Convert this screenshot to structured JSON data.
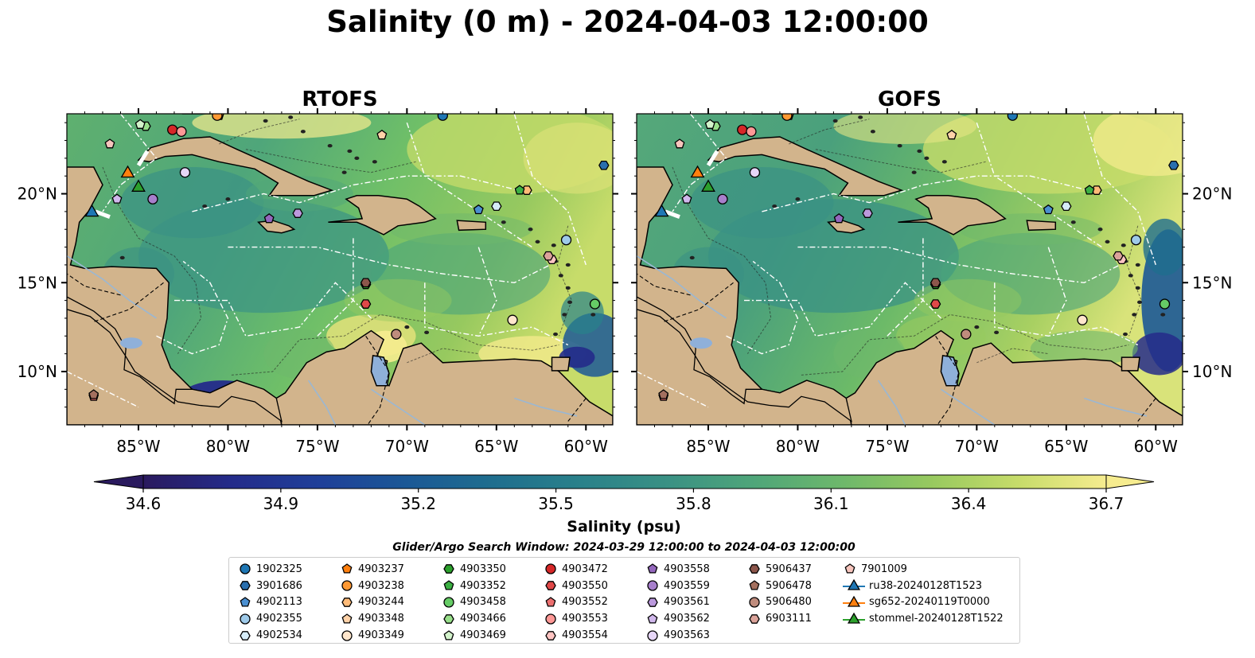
{
  "title": "Salinity (0 m) - 2024-04-03 12:00:00",
  "panels": [
    {
      "title": "RTOFS",
      "variant": "rtofs"
    },
    {
      "title": "GOFS",
      "variant": "gofs"
    }
  ],
  "axes": {
    "x_ticks": [
      "85°W",
      "80°W",
      "75°W",
      "70°W",
      "65°W",
      "60°W"
    ],
    "x_tick_lon": [
      -85,
      -80,
      -75,
      -70,
      -65,
      -60
    ],
    "y_ticks": [
      "20°N",
      "15°N",
      "10°N"
    ],
    "y_tick_lat": [
      20,
      15,
      10
    ],
    "lon_range": [
      -89,
      -58.5
    ],
    "lat_range": [
      7,
      24.5
    ]
  },
  "colorbar": {
    "label": "Salinity (psu)",
    "ticks": [
      "34.6",
      "34.9",
      "35.2",
      "35.5",
      "35.8",
      "36.1",
      "36.4",
      "36.7"
    ],
    "range": [
      34.6,
      36.7
    ],
    "extend": "both",
    "colormap_stops": [
      "#2a1a5e",
      "#242b8a",
      "#1f3f99",
      "#1b5896",
      "#1f6e8e",
      "#2a818a",
      "#3a9184",
      "#4fa679",
      "#6eb86b",
      "#97c95f",
      "#c7dc6a",
      "#f6ec8f"
    ]
  },
  "land_color": "#d2b48c",
  "lake_color": "#8fb0d9",
  "search_window": "Glider/Argo Search Window: 2024-03-29 12:00:00 to 2024-04-03 12:00:00",
  "legend_columns": [
    [
      {
        "label": "1902325",
        "marker": "circle",
        "color": "#1f77b4"
      },
      {
        "label": "3901686",
        "marker": "hexagon",
        "color": "#2a6fae"
      },
      {
        "label": "4902113",
        "marker": "pentagon",
        "color": "#4a8fd0"
      },
      {
        "label": "4902355",
        "marker": "circle",
        "color": "#9ecae9"
      },
      {
        "label": "4902534",
        "marker": "hexagon",
        "color": "#d6ecf8"
      }
    ],
    [
      {
        "label": "4903237",
        "marker": "pentagon",
        "color": "#ff7f0e"
      },
      {
        "label": "4903238",
        "marker": "circle",
        "color": "#ff9933"
      },
      {
        "label": "4903244",
        "marker": "hexagon",
        "color": "#ffbb78"
      },
      {
        "label": "4903348",
        "marker": "pentagon",
        "color": "#ffd2a8"
      },
      {
        "label": "4903349",
        "marker": "circle",
        "color": "#ffe6cc"
      }
    ],
    [
      {
        "label": "4903350",
        "marker": "hexagon",
        "color": "#2ca02c"
      },
      {
        "label": "4903352",
        "marker": "pentagon",
        "color": "#3cb043"
      },
      {
        "label": "4903458",
        "marker": "circle",
        "color": "#66cc66"
      },
      {
        "label": "4903466",
        "marker": "hexagon",
        "color": "#98df8a"
      },
      {
        "label": "4903469",
        "marker": "pentagon",
        "color": "#d4f4cc"
      }
    ],
    [
      {
        "label": "4903472",
        "marker": "circle",
        "color": "#d62728"
      },
      {
        "label": "4903550",
        "marker": "hexagon",
        "color": "#e04848"
      },
      {
        "label": "4903552",
        "marker": "pentagon",
        "color": "#ec6f6f"
      },
      {
        "label": "4903553",
        "marker": "circle",
        "color": "#ff9896"
      },
      {
        "label": "4903554",
        "marker": "hexagon",
        "color": "#ffc4c2"
      }
    ],
    [
      {
        "label": "4903558",
        "marker": "pentagon",
        "color": "#9467bd"
      },
      {
        "label": "4903559",
        "marker": "circle",
        "color": "#a77fcc"
      },
      {
        "label": "4903561",
        "marker": "hexagon",
        "color": "#bb99dd"
      },
      {
        "label": "4903562",
        "marker": "pentagon",
        "color": "#d1b8ec"
      },
      {
        "label": "4903563",
        "marker": "circle",
        "color": "#e6d6f7"
      }
    ],
    [
      {
        "label": "5906437",
        "marker": "hexagon",
        "color": "#8c564b"
      },
      {
        "label": "5906478",
        "marker": "pentagon",
        "color": "#a4705f"
      },
      {
        "label": "5906480",
        "marker": "circle",
        "color": "#bf8c7d"
      },
      {
        "label": "6903111",
        "marker": "hexagon",
        "color": "#dba39a"
      }
    ],
    [
      {
        "label": "7901009",
        "marker": "pentagon",
        "color": "#f7c5bd"
      },
      {
        "label": "ru38-20240128T1523",
        "marker": "triangle-line",
        "color": "#1f77b4"
      },
      {
        "label": "sg652-20240119T0000",
        "marker": "triangle-line",
        "color": "#ff7f0e"
      },
      {
        "label": "stommel-20240128T1522",
        "marker": "triangle-line",
        "color": "#2ca02c"
      }
    ]
  ],
  "floats": [
    {
      "id": "1902325",
      "lon": -68.0,
      "lat": 24.4
    },
    {
      "id": "3901686",
      "lon": -59.0,
      "lat": 21.6
    },
    {
      "id": "4902113",
      "lon": -66.0,
      "lat": 19.1
    },
    {
      "id": "4902355",
      "lon": -61.1,
      "lat": 17.4
    },
    {
      "id": "4902534",
      "lon": -65.0,
      "lat": 19.3
    },
    {
      "id": "4903237",
      "lon": -80.5,
      "lat": 24.4
    },
    {
      "id": "4903238",
      "lon": -80.6,
      "lat": 24.4
    },
    {
      "id": "4903244",
      "lon": -63.3,
      "lat": 20.2
    },
    {
      "id": "4903348",
      "lon": -71.4,
      "lat": 23.3
    },
    {
      "id": "4903349",
      "lon": -64.1,
      "lat": 12.9
    },
    {
      "id": "4903350",
      "lon": -72.3,
      "lat": 14.9
    },
    {
      "id": "4903352",
      "lon": -63.7,
      "lat": 20.2
    },
    {
      "id": "4903458",
      "lon": -59.5,
      "lat": 13.8
    },
    {
      "id": "4903466",
      "lon": -84.6,
      "lat": 23.8
    },
    {
      "id": "4903469",
      "lon": -84.9,
      "lat": 23.9
    },
    {
      "id": "4903472",
      "lon": -83.1,
      "lat": 23.6
    },
    {
      "id": "4903550",
      "lon": -72.3,
      "lat": 13.8
    },
    {
      "id": "4903552",
      "lon": -87.5,
      "lat": 8.6
    },
    {
      "id": "4903553",
      "lon": -82.6,
      "lat": 23.5
    },
    {
      "id": "4903554",
      "lon": -61.9,
      "lat": 16.3
    },
    {
      "id": "4903558",
      "lon": -77.7,
      "lat": 18.6
    },
    {
      "id": "4903559",
      "lon": -84.2,
      "lat": 19.7
    },
    {
      "id": "4903561",
      "lon": -76.1,
      "lat": 18.9
    },
    {
      "id": "4903562",
      "lon": -86.2,
      "lat": 19.7
    },
    {
      "id": "4903563",
      "lon": -82.4,
      "lat": 21.2
    },
    {
      "id": "5906437",
      "lon": -72.3,
      "lat": 15.0
    },
    {
      "id": "5906478",
      "lon": -87.5,
      "lat": 8.7
    },
    {
      "id": "5906480",
      "lon": -70.6,
      "lat": 12.1
    },
    {
      "id": "6903111",
      "lon": -62.1,
      "lat": 16.5
    },
    {
      "id": "7901009",
      "lon": -86.6,
      "lat": 22.8
    }
  ],
  "gliders": [
    {
      "id": "ru38-20240128T1523",
      "lon": -87.6,
      "lat": 18.9
    },
    {
      "id": "sg652-20240119T0000",
      "lon": -85.6,
      "lat": 21.1
    },
    {
      "id": "stommel-20240128T1522",
      "lon": -85.0,
      "lat": 20.3
    }
  ]
}
